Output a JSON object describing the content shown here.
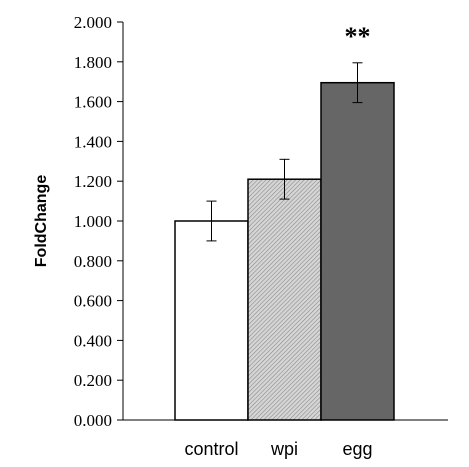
{
  "chart_data": {
    "type": "bar",
    "title": "",
    "xlabel": "",
    "ylabel": "FoldChange",
    "ylim": [
      0,
      2
    ],
    "yticks": [
      "0.000",
      "0.200",
      "0.400",
      "0.600",
      "0.800",
      "1.000",
      "1.200",
      "1.400",
      "1.600",
      "1.800",
      "2.000"
    ],
    "categories": [
      "control",
      "wpi",
      "egg"
    ],
    "values": [
      1.0,
      1.21,
      1.695
    ],
    "errors": [
      0.1,
      0.1,
      0.1
    ],
    "bar_fills": [
      "#ffffff",
      "#bdbdbd",
      "#666666"
    ],
    "bar_patterns": [
      "none",
      "dense-diagonal-hatch",
      "none"
    ],
    "annotations": [
      {
        "category": "egg",
        "text": "**"
      }
    ],
    "grid": false,
    "legend": "none"
  }
}
